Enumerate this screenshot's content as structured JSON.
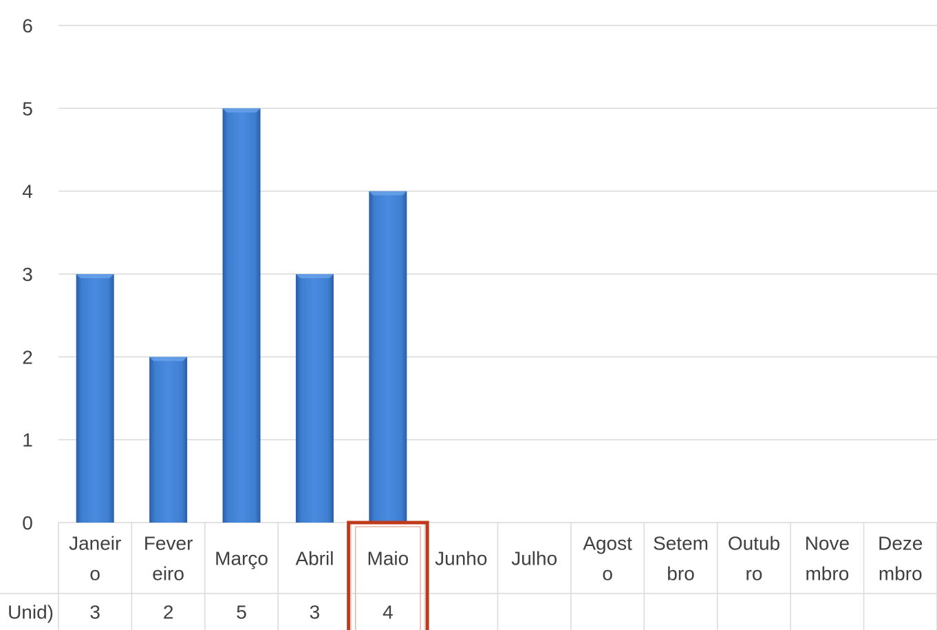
{
  "chart_data": {
    "type": "bar",
    "title": "",
    "xlabel": "",
    "ylabel": "",
    "ylim": [
      0,
      6
    ],
    "yticks": [
      "0",
      "1",
      "2",
      "3",
      "4",
      "5",
      "6"
    ],
    "grid": true,
    "categories": [
      {
        "lines": [
          "Janeir",
          "o"
        ]
      },
      {
        "lines": [
          "Fever",
          "eiro"
        ]
      },
      {
        "lines": [
          "Março"
        ]
      },
      {
        "lines": [
          "Abril"
        ]
      },
      {
        "lines": [
          "Maio"
        ]
      },
      {
        "lines": [
          "Junho"
        ]
      },
      {
        "lines": [
          "Julho"
        ]
      },
      {
        "lines": [
          "Agost",
          "o"
        ]
      },
      {
        "lines": [
          "Setem",
          "bro"
        ]
      },
      {
        "lines": [
          "Outub",
          "ro"
        ]
      },
      {
        "lines": [
          "Nove",
          "mbro"
        ]
      },
      {
        "lines": [
          "Deze",
          "mbro"
        ]
      }
    ],
    "series": [
      {
        "name": "Unid)",
        "values": [
          3,
          2,
          5,
          3,
          4,
          null,
          null,
          null,
          null,
          null,
          null,
          null
        ],
        "value_labels": [
          "3",
          "2",
          "5",
          "3",
          "4",
          "",
          "",
          "",
          "",
          "",
          "",
          ""
        ]
      }
    ],
    "highlighted_category": "Maio",
    "colors": {
      "bar": "#3f7fd1",
      "bar_dark": "#2a5ea8",
      "grid": "#d9d9d9",
      "highlight": "#c0391b",
      "text": "#404040"
    }
  }
}
